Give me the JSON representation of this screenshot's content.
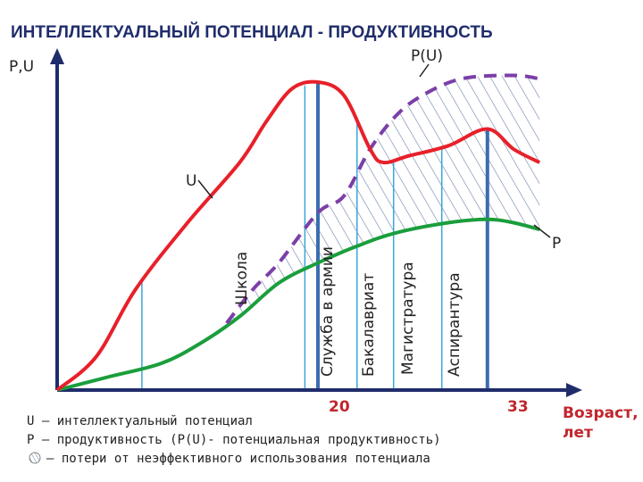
{
  "chart_data": {
    "type": "line",
    "title": "ИНТЕЛЛЕКТУАЛЬНЫЙ ПОТЕНЦИАЛ - ПРОДУКТИВНОСТЬ",
    "ylabel": "P,U",
    "xlabel": "Возраст, лет",
    "x_ticks": [
      20,
      33
    ],
    "series": [
      {
        "name": "U",
        "color": "#e8202a",
        "style": "solid",
        "points": [
          [
            0,
            0
          ],
          [
            3,
            10
          ],
          [
            6,
            30
          ],
          [
            10,
            50
          ],
          [
            14,
            68
          ],
          [
            16,
            80
          ],
          [
            18,
            90
          ],
          [
            20,
            92
          ],
          [
            22,
            88
          ],
          [
            24,
            72
          ],
          [
            25,
            68
          ],
          [
            27,
            70
          ],
          [
            30,
            73
          ],
          [
            33,
            78
          ],
          [
            35,
            72
          ],
          [
            37,
            68
          ]
        ]
      },
      {
        "name": "P(U)",
        "color": "#7b3fa8",
        "style": "dashed",
        "points": [
          [
            13,
            20
          ],
          [
            15,
            30
          ],
          [
            17,
            38
          ],
          [
            20,
            53
          ],
          [
            22,
            58
          ],
          [
            24,
            72
          ],
          [
            26,
            82
          ],
          [
            28,
            88
          ],
          [
            31,
            93
          ],
          [
            35,
            94
          ],
          [
            37,
            93
          ]
        ]
      },
      {
        "name": "P",
        "color": "#1a9e3c",
        "style": "solid",
        "points": [
          [
            0,
            0
          ],
          [
            4,
            4
          ],
          [
            8,
            8
          ],
          [
            11,
            14
          ],
          [
            14,
            22
          ],
          [
            17,
            32
          ],
          [
            20,
            38
          ],
          [
            23,
            43
          ],
          [
            26,
            47
          ],
          [
            30,
            50
          ],
          [
            33,
            51
          ],
          [
            35,
            50
          ],
          [
            37,
            48
          ]
        ]
      }
    ],
    "curve_labels": {
      "u": "U",
      "pu": "P(U)",
      "p": "P"
    },
    "periods": [
      {
        "label": "Школа"
      },
      {
        "label": "Служба в армии"
      },
      {
        "label": "Бакалавриат"
      },
      {
        "label": "Магистратура"
      },
      {
        "label": "Аспирантура"
      }
    ],
    "legend": [
      "U — интеллектуальный потенциал",
      "P — продуктивность (P(U)- потенциальная продуктивность)",
      "— потери от неэффективного использования потенциала"
    ],
    "colors": {
      "axis": "#1f2d6b",
      "grid_line": "#3aa6d8",
      "tick_line": "#3b6db0",
      "hatch": "#6b7fa8",
      "accent": "#c0262d"
    }
  }
}
